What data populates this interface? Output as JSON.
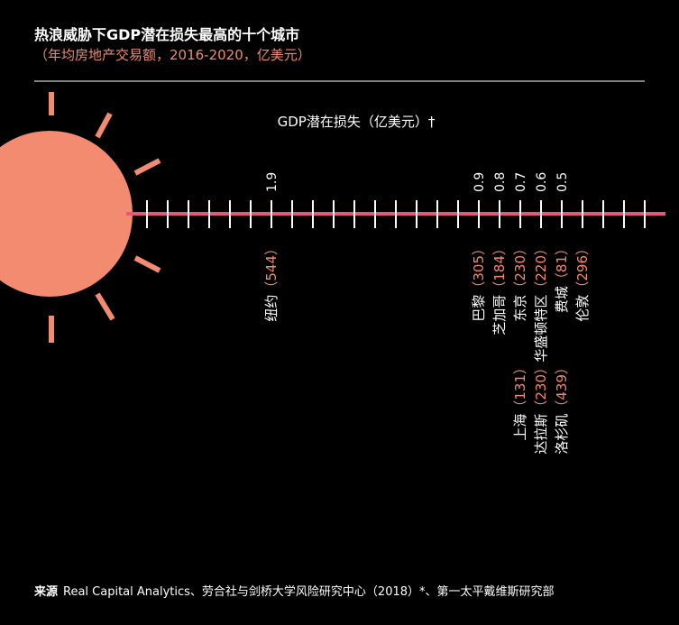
{
  "chart_data": {
    "type": "strip",
    "title": "热浪威胁下GDP潜在损失最高的十个城市",
    "subtitle": "（年均房地产交易额，2016-2020，亿美元）",
    "x_label": "GDP潜在损失（亿美元）†",
    "xlim": [
      2.6,
      0
    ],
    "xticks": [
      2.5,
      2.4,
      2.3,
      2.2,
      2.1,
      2.0,
      1.9,
      1.8,
      1.7,
      1.6,
      1.5,
      1.4,
      1.3,
      1.2,
      1.1,
      1.0,
      0.9,
      0.8,
      0.7,
      0.6,
      0.5,
      0.4,
      0.3,
      0.2,
      0.1
    ],
    "line_color": "#e5587c",
    "label_color": "#f0896e",
    "positions": [
      {
        "value": 1.9,
        "cities": [
          {
            "name": "纽约",
            "volume": 544,
            "volume_label": "（544）"
          }
        ]
      },
      {
        "value": 0.9,
        "cities": [
          {
            "name": "巴黎",
            "volume": 305,
            "volume_label": "（305）"
          }
        ]
      },
      {
        "value": 0.8,
        "cities": [
          {
            "name": "芝加哥",
            "volume": 184,
            "volume_label": "（184）"
          }
        ]
      },
      {
        "value": 0.7,
        "cities": [
          {
            "name": "东京",
            "volume": 230,
            "volume_label": "（230）"
          },
          {
            "name": "上海",
            "volume": 131,
            "volume_label": "（131）"
          }
        ]
      },
      {
        "value": 0.6,
        "cities": [
          {
            "name": "华盛顿特区",
            "volume": 220,
            "volume_label": "（220）"
          },
          {
            "name": "达拉斯",
            "volume": 230,
            "volume_label": "（230）"
          }
        ]
      },
      {
        "value": 0.5,
        "cities": [
          {
            "name": "费城",
            "volume": 81,
            "volume_label": "（81）"
          },
          {
            "name": "洛杉矶",
            "volume": 439,
            "volume_label": "（439）"
          },
          {
            "name": "伦敦",
            "volume": 296,
            "volume_label": "（296）"
          }
        ]
      }
    ],
    "source_label": "来源",
    "source": "Real Capital Analytics、劳合社与剑桥大学风险研究中心（2018）*、第一太平戴维斯研究部"
  }
}
